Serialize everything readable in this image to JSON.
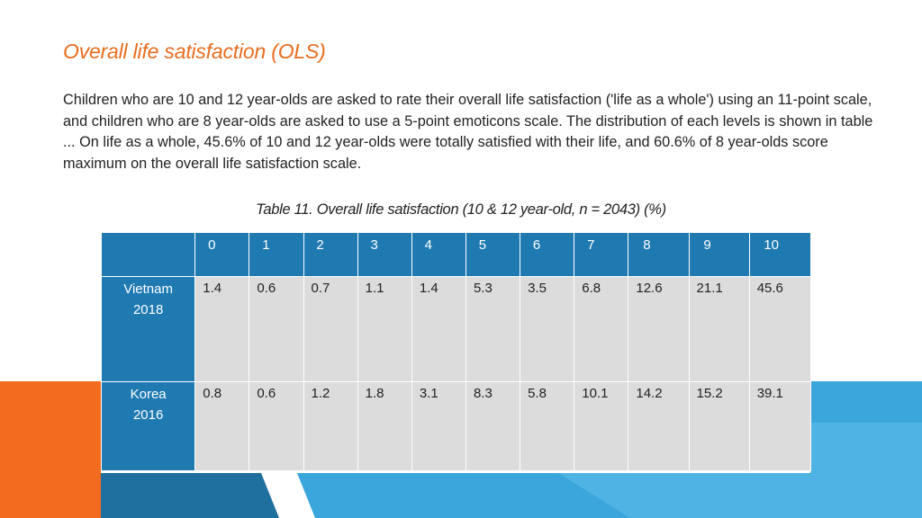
{
  "title": "Overall life satisfaction (OLS)",
  "paragraph": "Children who are 10 and 12 year-olds are asked to rate their overall life satisfaction ('life as a whole') using an 11-point scale, and children who are 8 year-olds are asked to use a 5-point emoticons scale. The distribution of each levels is shown in table ... On life as a whole, 45.6% of 10 and 12 year-olds were totally satisfied with their life, and 60.6% of 8 year-olds score maximum on the overall life satisfaction scale.",
  "table": {
    "caption": "Table 11. Overall life satisfaction (10 & 12 year-old, n = 2043) (%)",
    "headers": [
      "0",
      "1",
      "2",
      "3",
      "4",
      "5",
      "6",
      "7",
      "8",
      "9",
      "10"
    ],
    "rows": [
      {
        "country": "Vietnam",
        "year": "2018",
        "values": [
          "1.4",
          "0.6",
          "0.7",
          "1.1",
          "1.4",
          "5.3",
          "3.5",
          "6.8",
          "12.6",
          "21.1",
          "45.6"
        ]
      },
      {
        "country": "Korea",
        "year": "2016",
        "values": [
          "0.8",
          "0.6",
          "1.2",
          "1.8",
          "3.1",
          "8.3",
          "5.8",
          "10.1",
          "14.2",
          "15.2",
          "39.1"
        ]
      }
    ]
  },
  "colors": {
    "title": "#e86d1f",
    "header_blue": "#1f7ab2",
    "cell_gray": "#dcdcdc",
    "accent_orange": "#f26b1f",
    "accent_blue": "#3aa6dc",
    "accent_light_blue": "#5ab8e4"
  }
}
